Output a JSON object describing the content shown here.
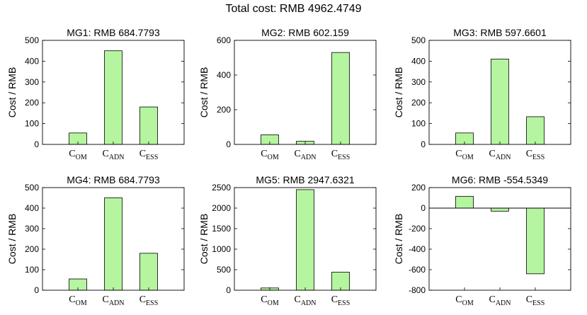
{
  "title": "Total cost: RMB 4962.4749",
  "chart_data": [
    {
      "type": "bar",
      "title": "MG1: RMB 684.7793",
      "ylabel": "Cost / RMB",
      "categories": [
        {
          "main": "C",
          "sub": "OM"
        },
        {
          "main": "C",
          "sub": "ADN"
        },
        {
          "main": "C",
          "sub": "ESS"
        }
      ],
      "values": [
        55,
        450,
        180
      ],
      "ylim": [
        0,
        500
      ],
      "yticks": [
        0,
        100,
        200,
        300,
        400,
        500
      ],
      "bar_color": "#b5f5a0",
      "grid": false
    },
    {
      "type": "bar",
      "title": "MG2: RMB 602.159",
      "ylabel": "Cost / RMB",
      "categories": [
        {
          "main": "C",
          "sub": "OM"
        },
        {
          "main": "C",
          "sub": "ADN"
        },
        {
          "main": "C",
          "sub": "ESS"
        }
      ],
      "values": [
        55,
        18,
        530
      ],
      "ylim": [
        0,
        600
      ],
      "yticks": [
        0,
        200,
        400,
        600
      ],
      "bar_color": "#b5f5a0",
      "grid": false
    },
    {
      "type": "bar",
      "title": "MG3: RMB 597.6601",
      "ylabel": "Cost / RMB",
      "categories": [
        {
          "main": "C",
          "sub": "OM"
        },
        {
          "main": "C",
          "sub": "ADN"
        },
        {
          "main": "C",
          "sub": "ESS"
        }
      ],
      "values": [
        55,
        410,
        133
      ],
      "ylim": [
        0,
        500
      ],
      "yticks": [
        0,
        100,
        200,
        300,
        400,
        500
      ],
      "bar_color": "#b5f5a0",
      "grid": false
    },
    {
      "type": "bar",
      "title": "MG4: RMB 684.7793",
      "ylabel": "Cost / RMB",
      "categories": [
        {
          "main": "C",
          "sub": "OM"
        },
        {
          "main": "C",
          "sub": "ADN"
        },
        {
          "main": "C",
          "sub": "ESS"
        }
      ],
      "values": [
        55,
        450,
        180
      ],
      "ylim": [
        0,
        500
      ],
      "yticks": [
        0,
        100,
        200,
        300,
        400,
        500
      ],
      "bar_color": "#b5f5a0",
      "grid": false
    },
    {
      "type": "bar",
      "title": "MG5: RMB 2947.6321",
      "ylabel": "Cost / RMB",
      "categories": [
        {
          "main": "C",
          "sub": "OM"
        },
        {
          "main": "C",
          "sub": "ADN"
        },
        {
          "main": "C",
          "sub": "ESS"
        }
      ],
      "values": [
        55,
        2450,
        440
      ],
      "ylim": [
        0,
        2500
      ],
      "yticks": [
        0,
        500,
        1000,
        1500,
        2000,
        2500
      ],
      "bar_color": "#b5f5a0",
      "grid": false
    },
    {
      "type": "bar",
      "title": "MG6: RMB -554.5349",
      "ylabel": "Cost / RMB",
      "categories": [
        {
          "main": "C",
          "sub": "OM"
        },
        {
          "main": "C",
          "sub": "ADN"
        },
        {
          "main": "C",
          "sub": "ESS"
        }
      ],
      "values": [
        115,
        -30,
        -640
      ],
      "ylim": [
        -800,
        200
      ],
      "yticks": [
        -800,
        -600,
        -400,
        -200,
        0,
        200
      ],
      "bar_color": "#b5f5a0",
      "grid": false,
      "zero_line": true
    }
  ]
}
